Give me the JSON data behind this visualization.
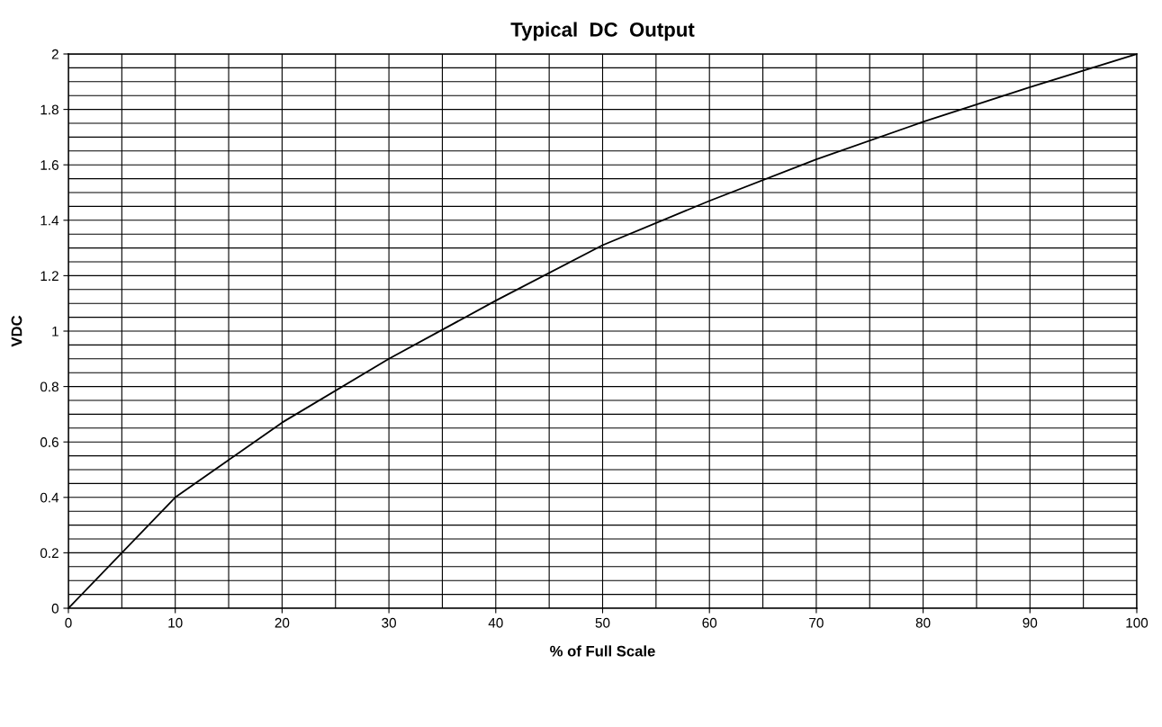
{
  "chart_data": {
    "type": "line",
    "title": "Typical  DC  Output",
    "xlabel": "% of Full Scale",
    "ylabel": "VDC",
    "x": [
      0,
      10,
      20,
      30,
      40,
      50,
      60,
      70,
      80,
      90,
      100
    ],
    "series": [
      {
        "color": "#000000",
        "values": [
          0,
          0.4,
          0.67,
          0.9,
          1.11,
          1.31,
          1.47,
          1.62,
          1.755,
          1.88,
          2.0
        ]
      }
    ],
    "xlim": [
      0,
      100
    ],
    "ylim": [
      0,
      2
    ],
    "xticks": [
      0,
      {
        "value": 5,
        "label": null
      },
      10,
      {
        "value": 15,
        "label": null
      },
      20,
      {
        "value": 25,
        "label": null
      },
      30,
      {
        "value": 35,
        "label": null
      },
      40,
      {
        "value": 45,
        "label": null
      },
      50,
      {
        "value": 55,
        "label": null
      },
      60,
      {
        "value": 65,
        "label": null
      },
      70,
      {
        "value": 75,
        "label": null
      },
      80,
      {
        "value": 85,
        "label": null
      },
      90,
      {
        "value": 95,
        "label": null
      },
      100
    ],
    "yticks": [
      0,
      {
        "value": 0.05,
        "label": null
      },
      {
        "value": 0.1,
        "label": null
      },
      {
        "value": 0.15,
        "label": null
      },
      0.2,
      {
        "value": 0.25,
        "label": null
      },
      {
        "value": 0.3,
        "label": null
      },
      {
        "value": 0.35,
        "label": null
      },
      0.4,
      {
        "value": 0.45,
        "label": null
      },
      {
        "value": 0.5,
        "label": null
      },
      {
        "value": 0.55,
        "label": null
      },
      0.6,
      {
        "value": 0.65,
        "label": null
      },
      {
        "value": 0.7,
        "label": null
      },
      {
        "value": 0.75,
        "label": null
      },
      0.8,
      {
        "value": 0.85,
        "label": null
      },
      {
        "value": 0.9,
        "label": null
      },
      {
        "value": 0.95,
        "label": null
      },
      1,
      {
        "value": 1.05,
        "label": null
      },
      {
        "value": 1.1,
        "label": null
      },
      {
        "value": 1.15,
        "label": null
      },
      1.2,
      {
        "value": 1.25,
        "label": null
      },
      {
        "value": 1.3,
        "label": null
      },
      {
        "value": 1.35,
        "label": null
      },
      1.4,
      {
        "value": 1.45,
        "label": null
      },
      {
        "value": 1.5,
        "label": null
      },
      {
        "value": 1.55,
        "label": null
      },
      1.6,
      {
        "value": 1.65,
        "label": null
      },
      {
        "value": 1.7,
        "label": null
      },
      {
        "value": 1.75,
        "label": null
      },
      1.8,
      {
        "value": 1.85,
        "label": null
      },
      {
        "value": 1.9,
        "label": null
      },
      {
        "value": 1.95,
        "label": null
      },
      2
    ],
    "grid": true,
    "marker": "none",
    "line_style": "solid",
    "legend": false
  }
}
